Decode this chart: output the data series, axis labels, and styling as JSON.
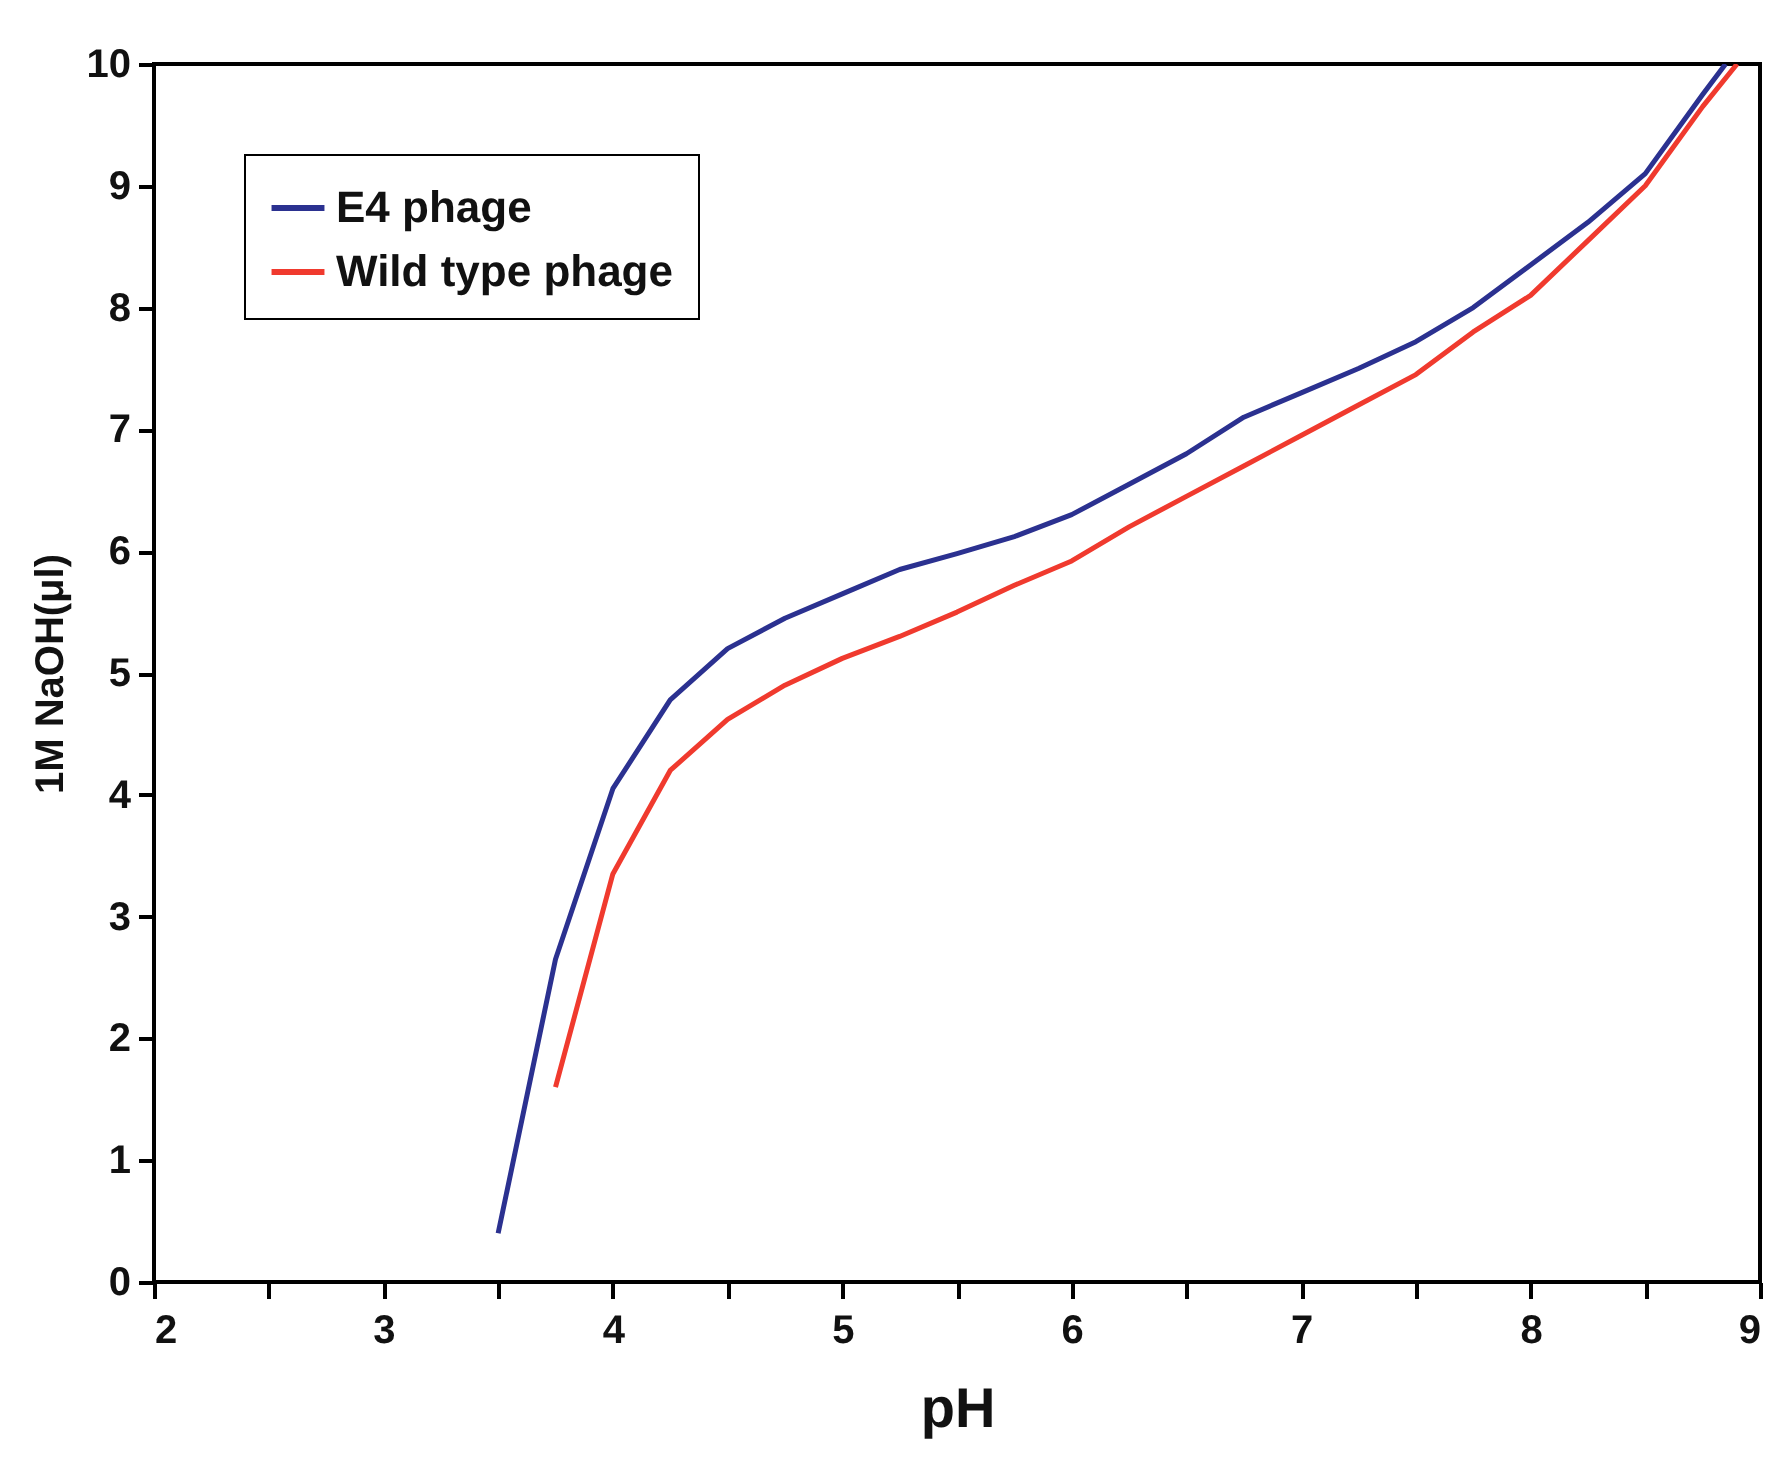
{
  "chart_data": {
    "type": "line",
    "xlabel": "pH",
    "ylabel": "1M NaOH(μl)",
    "xlim": [
      2,
      9
    ],
    "ylim": [
      0,
      10
    ],
    "xticks": [
      2,
      {
        "value": 2.5,
        "label": null
      },
      3,
      {
        "value": 3.5,
        "label": null
      },
      4,
      {
        "value": 4.5,
        "label": null
      },
      5,
      {
        "value": 5.5,
        "label": null
      },
      6,
      {
        "value": 6.5,
        "label": null
      },
      7,
      {
        "value": 7.5,
        "label": null
      },
      8,
      {
        "value": 8.5,
        "label": null
      },
      9
    ],
    "yticks": [
      0,
      1,
      2,
      3,
      4,
      5,
      6,
      7,
      8,
      9,
      10
    ],
    "grid": false,
    "legend": "top left",
    "line_style": "solid",
    "marker": "none",
    "series": [
      {
        "name": "E4 phage",
        "color": "#2b3190",
        "x": [
          3.5,
          3.75,
          4.0,
          4.25,
          4.5,
          4.75,
          5.0,
          5.25,
          5.5,
          5.75,
          6.0,
          6.25,
          6.5,
          6.75,
          7.0,
          7.25,
          7.5,
          7.75,
          8.0,
          8.25,
          8.5,
          8.75,
          8.85
        ],
        "values": [
          0.4,
          2.65,
          4.05,
          4.78,
          5.2,
          5.45,
          5.65,
          5.85,
          5.98,
          6.12,
          6.3,
          6.55,
          6.8,
          7.1,
          7.3,
          7.5,
          7.72,
          8.0,
          8.35,
          8.7,
          9.1,
          9.75,
          10.0
        ]
      },
      {
        "name": "Wild type phage",
        "color": "#f03a2e",
        "x": [
          3.75,
          4.0,
          4.25,
          4.5,
          4.75,
          5.0,
          5.25,
          5.5,
          5.75,
          6.0,
          6.25,
          6.5,
          6.75,
          7.0,
          7.25,
          7.5,
          7.75,
          8.0,
          8.25,
          8.5,
          8.75,
          8.9
        ],
        "values": [
          1.6,
          3.35,
          4.2,
          4.62,
          4.9,
          5.12,
          5.3,
          5.5,
          5.72,
          5.92,
          6.2,
          6.45,
          6.7,
          6.95,
          7.2,
          7.45,
          7.8,
          8.1,
          8.55,
          9.0,
          9.65,
          10.0
        ]
      }
    ]
  }
}
